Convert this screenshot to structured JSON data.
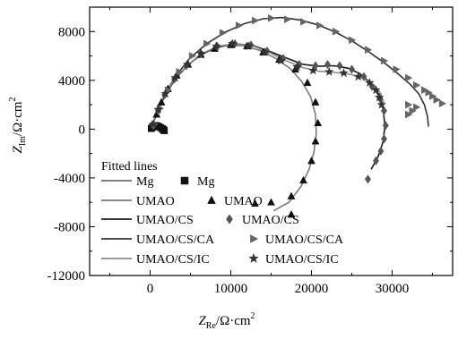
{
  "chart_data": {
    "type": "scatter",
    "xlabel_main": "Z",
    "xlabel_sub": "Re",
    "xlabel_unit": "/Ω·cm",
    "xlabel_sup": "2",
    "ylabel_main": "Z",
    "ylabel_sub": "Im",
    "ylabel_unit": "/Ω·cm",
    "ylabel_sup": "2",
    "xlim": [
      -7500,
      37500
    ],
    "ylim": [
      -12000,
      10000
    ],
    "xticks": [
      0,
      10000,
      20000,
      30000
    ],
    "xtick_labels": [
      "0",
      "10000",
      "20000",
      "30000"
    ],
    "yticks": [
      -12000,
      -8000,
      -4000,
      0,
      4000,
      8000
    ],
    "ytick_labels": [
      "-12000",
      "-8000",
      "-4000",
      "0",
      "4000",
      "8000"
    ],
    "legend_title": "Fitted lines",
    "legend_position": "lower-left",
    "series": [
      {
        "name": "Mg",
        "marker": "square",
        "line_color": "#6e6e6e",
        "marker_color": "#111111",
        "points": [
          [
            150,
            50
          ],
          [
            300,
            150
          ],
          [
            500,
            250
          ],
          [
            700,
            300
          ],
          [
            900,
            260
          ],
          [
            1100,
            200
          ],
          [
            1300,
            120
          ],
          [
            1500,
            40
          ],
          [
            1600,
            -20
          ],
          [
            1700,
            -80
          ],
          [
            1750,
            -120
          ]
        ],
        "fit": [
          [
            100,
            0
          ],
          [
            300,
            150
          ],
          [
            600,
            280
          ],
          [
            900,
            290
          ],
          [
            1200,
            200
          ],
          [
            1500,
            70
          ],
          [
            1700,
            -60
          ]
        ]
      },
      {
        "name": "UMAO",
        "marker": "triangle-up",
        "line_color": "#7a7a7a",
        "marker_color": "#111111",
        "points": [
          [
            400,
            300
          ],
          [
            800,
            1200
          ],
          [
            1400,
            2200
          ],
          [
            2200,
            3300
          ],
          [
            3300,
            4400
          ],
          [
            4700,
            5300
          ],
          [
            6300,
            6100
          ],
          [
            8000,
            6600
          ],
          [
            10000,
            6900
          ],
          [
            12000,
            6800
          ],
          [
            14000,
            6300
          ],
          [
            16000,
            5700
          ],
          [
            18000,
            4900
          ],
          [
            19500,
            3800
          ],
          [
            20500,
            2200
          ],
          [
            20800,
            500
          ],
          [
            20500,
            -1000
          ],
          [
            20000,
            -2600
          ],
          [
            19000,
            -4200
          ],
          [
            17500,
            -5500
          ],
          [
            15000,
            -6000
          ],
          [
            13000,
            -6100
          ],
          [
            17500,
            -7000
          ]
        ],
        "fit": [
          [
            0,
            0
          ],
          [
            500,
            700
          ],
          [
            1200,
            1900
          ],
          [
            2200,
            3200
          ],
          [
            3600,
            4500
          ],
          [
            5300,
            5600
          ],
          [
            7200,
            6400
          ],
          [
            9300,
            6850
          ],
          [
            11500,
            6850
          ],
          [
            13600,
            6450
          ],
          [
            15600,
            5800
          ],
          [
            17400,
            4950
          ],
          [
            18800,
            3900
          ],
          [
            19900,
            2650
          ],
          [
            20500,
            1200
          ],
          [
            20600,
            -400
          ],
          [
            20300,
            -1900
          ],
          [
            19700,
            -3300
          ],
          [
            18700,
            -4700
          ],
          [
            17200,
            -6000
          ],
          [
            15300,
            -6700
          ]
        ]
      },
      {
        "name": "UMAO/CS",
        "marker": "diamond",
        "line_color": "#1a1a1a",
        "marker_color": "#555555",
        "points": [
          [
            400,
            300
          ],
          [
            1000,
            1500
          ],
          [
            1800,
            2800
          ],
          [
            3000,
            4100
          ],
          [
            4500,
            5200
          ],
          [
            6300,
            6200
          ],
          [
            8300,
            6800
          ],
          [
            10500,
            7000
          ],
          [
            12500,
            6900
          ],
          [
            14500,
            6400
          ],
          [
            16500,
            5800
          ],
          [
            18500,
            5300
          ],
          [
            20500,
            5200
          ],
          [
            22000,
            5300
          ],
          [
            23500,
            5200
          ],
          [
            25000,
            4900
          ],
          [
            26500,
            4300
          ],
          [
            27500,
            3500
          ],
          [
            28500,
            2500
          ],
          [
            29000,
            1500
          ],
          [
            29200,
            300
          ],
          [
            29000,
            -800
          ],
          [
            28600,
            -1800
          ],
          [
            28000,
            -2600
          ],
          [
            27000,
            -4100
          ]
        ],
        "fit": [
          [
            0,
            0
          ],
          [
            600,
            900
          ],
          [
            1500,
            2300
          ],
          [
            2800,
            3800
          ],
          [
            4400,
            5100
          ],
          [
            6300,
            6100
          ],
          [
            8400,
            6750
          ],
          [
            10600,
            7000
          ],
          [
            12800,
            6850
          ],
          [
            14900,
            6350
          ],
          [
            17000,
            5800
          ],
          [
            19000,
            5300
          ],
          [
            21000,
            5150
          ],
          [
            22800,
            5200
          ],
          [
            24500,
            5000
          ],
          [
            26000,
            4550
          ],
          [
            27300,
            3800
          ],
          [
            28300,
            2800
          ],
          [
            28900,
            1600
          ],
          [
            29100,
            300
          ],
          [
            28900,
            -1000
          ],
          [
            28300,
            -2200
          ],
          [
            27400,
            -3300
          ]
        ]
      },
      {
        "name": "UMAO/CS/CA",
        "marker": "triangle-right",
        "line_color": "#333333",
        "marker_color": "#666666",
        "points": [
          [
            500,
            400
          ],
          [
            1200,
            1700
          ],
          [
            2200,
            3200
          ],
          [
            3600,
            4700
          ],
          [
            5200,
            6000
          ],
          [
            7000,
            7000
          ],
          [
            9000,
            7900
          ],
          [
            11000,
            8500
          ],
          [
            13000,
            8900
          ],
          [
            15000,
            9100
          ],
          [
            17000,
            9000
          ],
          [
            19000,
            8800
          ],
          [
            21000,
            8500
          ],
          [
            23000,
            8000
          ],
          [
            25000,
            7300
          ],
          [
            27000,
            6500
          ],
          [
            29000,
            5600
          ],
          [
            30500,
            4900
          ],
          [
            32000,
            4200
          ],
          [
            33000,
            3600
          ],
          [
            34000,
            3200
          ],
          [
            34500,
            3000
          ],
          [
            35000,
            2700
          ],
          [
            35500,
            2400
          ],
          [
            36200,
            2100
          ],
          [
            32000,
            2000
          ],
          [
            33000,
            1800
          ],
          [
            32500,
            1500
          ],
          [
            32000,
            1200
          ]
        ],
        "fit": [
          [
            0,
            0
          ],
          [
            700,
            1100
          ],
          [
            1700,
            2700
          ],
          [
            3100,
            4300
          ],
          [
            4900,
            5800
          ],
          [
            7000,
            7000
          ],
          [
            9300,
            7950
          ],
          [
            11700,
            8650
          ],
          [
            14000,
            9050
          ],
          [
            16300,
            9150
          ],
          [
            18600,
            8950
          ],
          [
            20800,
            8550
          ],
          [
            23000,
            7950
          ],
          [
            25100,
            7200
          ],
          [
            27200,
            6300
          ],
          [
            29100,
            5400
          ],
          [
            30800,
            4500
          ],
          [
            32200,
            3700
          ],
          [
            33300,
            2900
          ],
          [
            34000,
            2000
          ],
          [
            34400,
            1000
          ],
          [
            34500,
            200
          ]
        ]
      },
      {
        "name": "UMAO/CS/IC",
        "marker": "star",
        "line_color": "#8c8c8c",
        "marker_color": "#333333",
        "points": [
          [
            400,
            400
          ],
          [
            1000,
            1600
          ],
          [
            1900,
            2900
          ],
          [
            3100,
            4200
          ],
          [
            4600,
            5300
          ],
          [
            6300,
            6200
          ],
          [
            8200,
            6800
          ],
          [
            10200,
            7000
          ],
          [
            12200,
            6800
          ],
          [
            14200,
            6300
          ],
          [
            16200,
            5600
          ],
          [
            18200,
            5100
          ],
          [
            20200,
            4800
          ],
          [
            22200,
            4700
          ],
          [
            24000,
            4600
          ],
          [
            25800,
            4300
          ],
          [
            27200,
            3800
          ],
          [
            28000,
            3200
          ],
          [
            28400,
            2600
          ],
          [
            28700,
            2000
          ]
        ],
        "fit": [
          [
            0,
            0
          ],
          [
            600,
            1000
          ],
          [
            1500,
            2400
          ],
          [
            2800,
            3900
          ],
          [
            4400,
            5100
          ],
          [
            6300,
            6150
          ],
          [
            8400,
            6800
          ],
          [
            10600,
            7000
          ],
          [
            12800,
            6800
          ],
          [
            14900,
            6250
          ],
          [
            16900,
            5600
          ],
          [
            18900,
            5050
          ],
          [
            20900,
            4750
          ],
          [
            22900,
            4650
          ],
          [
            24800,
            4500
          ],
          [
            26500,
            4150
          ],
          [
            27800,
            3600
          ],
          [
            28600,
            2900
          ],
          [
            29000,
            2100
          ]
        ]
      }
    ]
  }
}
